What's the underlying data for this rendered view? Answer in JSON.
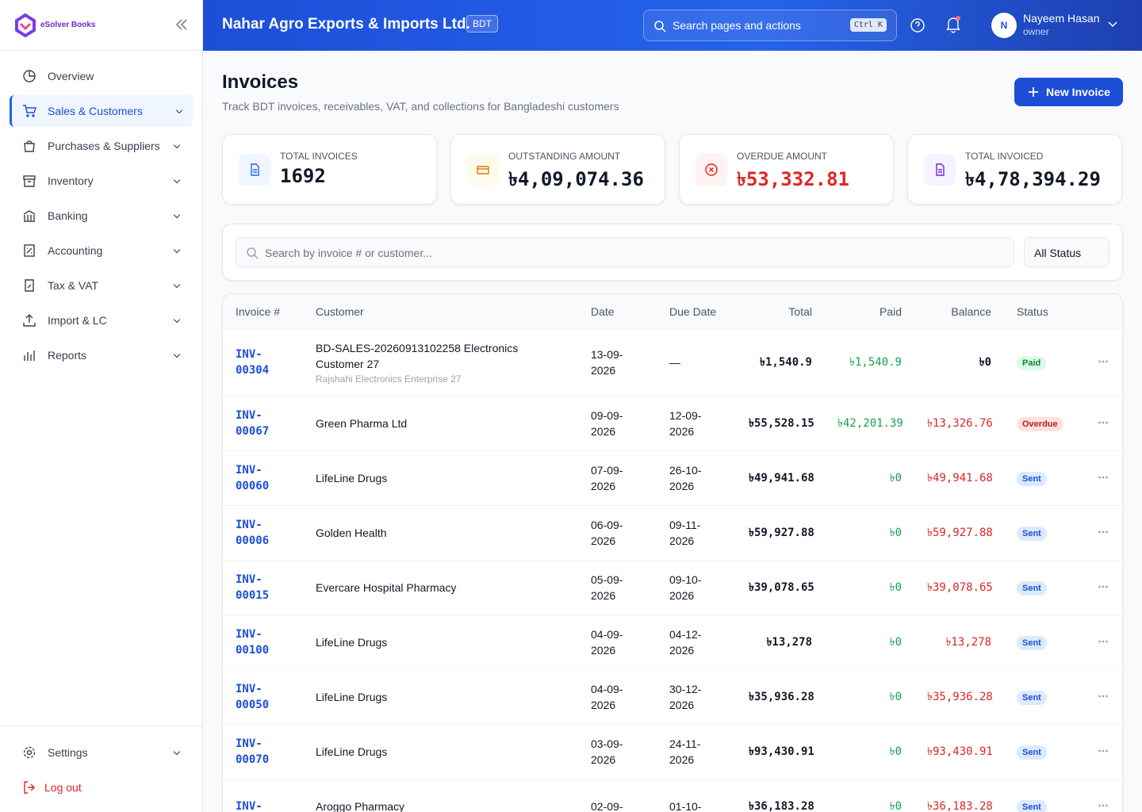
{
  "sidebar": {
    "brand": "eSolver Books",
    "nav": [
      "Overview",
      "Sales & Customers",
      "Purchases & Suppliers",
      "Inventory",
      "Banking",
      "Accounting",
      "Tax & VAT",
      "Import & LC",
      "Reports"
    ],
    "footer": [
      "Settings",
      "Log out"
    ]
  },
  "header": {
    "company": "Nahar Agro Exports & Imports Ltd.",
    "currency": "BDT",
    "search": "Search pages and actions",
    "shortcut": "Ctrl K",
    "avatar": "N",
    "user_name": "Nayeem Hasan",
    "user_role": "owner"
  },
  "page": {
    "title": "Invoices",
    "subtitle": "Track BDT invoices, receivables, VAT, and collections for Bangladeshi customers",
    "new_button": "New Invoice"
  },
  "stats": [
    {
      "label": "TOTAL INVOICES",
      "value": "1692"
    },
    {
      "label": "OUTSTANDING AMOUNT",
      "value": "৳4,09,074.36"
    },
    {
      "label": "OVERDUE AMOUNT",
      "value": "৳53,332.81"
    },
    {
      "label": "TOTAL INVOICED",
      "value": "৳4,78,394.29"
    }
  ],
  "filters": {
    "search": "Search by invoice # or customer...",
    "status": "All Status"
  },
  "table": {
    "columns": [
      "Invoice #",
      "Customer",
      "Date",
      "Due Date",
      "Total",
      "Paid",
      "Balance",
      "Status"
    ],
    "rows": [
      {
        "invoice": "INV-00304",
        "customer": "BD-SALES-20260913102258 Electronics Customer 27",
        "detail": "Rajshahi Electronics Enterprise 27",
        "date": "13-09-2026",
        "due": "—",
        "total": "৳1,540.9",
        "paid": "৳1,540.9",
        "balance": "৳0",
        "status": "Paid"
      },
      {
        "invoice": "INV-00067",
        "customer": "Green Pharma Ltd",
        "date": "09-09-2026",
        "due": "12-09-2026",
        "total": "৳55,528.15",
        "paid": "৳42,201.39",
        "balance": "৳13,326.76",
        "status": "Overdue"
      },
      {
        "invoice": "INV-00060",
        "customer": "LifeLine Drugs",
        "date": "07-09-2026",
        "due": "26-10-2026",
        "total": "৳49,941.68",
        "paid": "৳0",
        "balance": "৳49,941.68",
        "status": "Sent"
      },
      {
        "invoice": "INV-00006",
        "customer": "Golden Health",
        "date": "06-09-2026",
        "due": "09-11-2026",
        "total": "৳59,927.88",
        "paid": "৳0",
        "balance": "৳59,927.88",
        "status": "Sent"
      },
      {
        "invoice": "INV-00015",
        "customer": "Evercare Hospital Pharmacy",
        "date": "05-09-2026",
        "due": "09-10-2026",
        "total": "৳39,078.65",
        "paid": "৳0",
        "balance": "৳39,078.65",
        "status": "Sent"
      },
      {
        "invoice": "INV-00100",
        "customer": "LifeLine Drugs",
        "date": "04-09-2026",
        "due": "04-12-2026",
        "total": "৳13,278",
        "paid": "৳0",
        "balance": "৳13,278",
        "status": "Sent"
      },
      {
        "invoice": "INV-00050",
        "customer": "LifeLine Drugs",
        "date": "04-09-2026",
        "due": "30-12-2026",
        "total": "৳35,936.28",
        "paid": "৳0",
        "balance": "৳35,936.28",
        "status": "Sent"
      },
      {
        "invoice": "INV-00070",
        "customer": "LifeLine Drugs",
        "date": "03-09-2026",
        "due": "24-11-2026",
        "total": "৳93,430.91",
        "paid": "৳0",
        "balance": "৳93,430.91",
        "status": "Sent"
      },
      {
        "invoice": "INV-",
        "customer": "Aroggo Pharmacy",
        "date": "02-09-",
        "due": "01-10-",
        "total": "৳36,183.28",
        "paid": "৳0",
        "balance": "৳36,183.28",
        "status": "Sent"
      }
    ]
  }
}
